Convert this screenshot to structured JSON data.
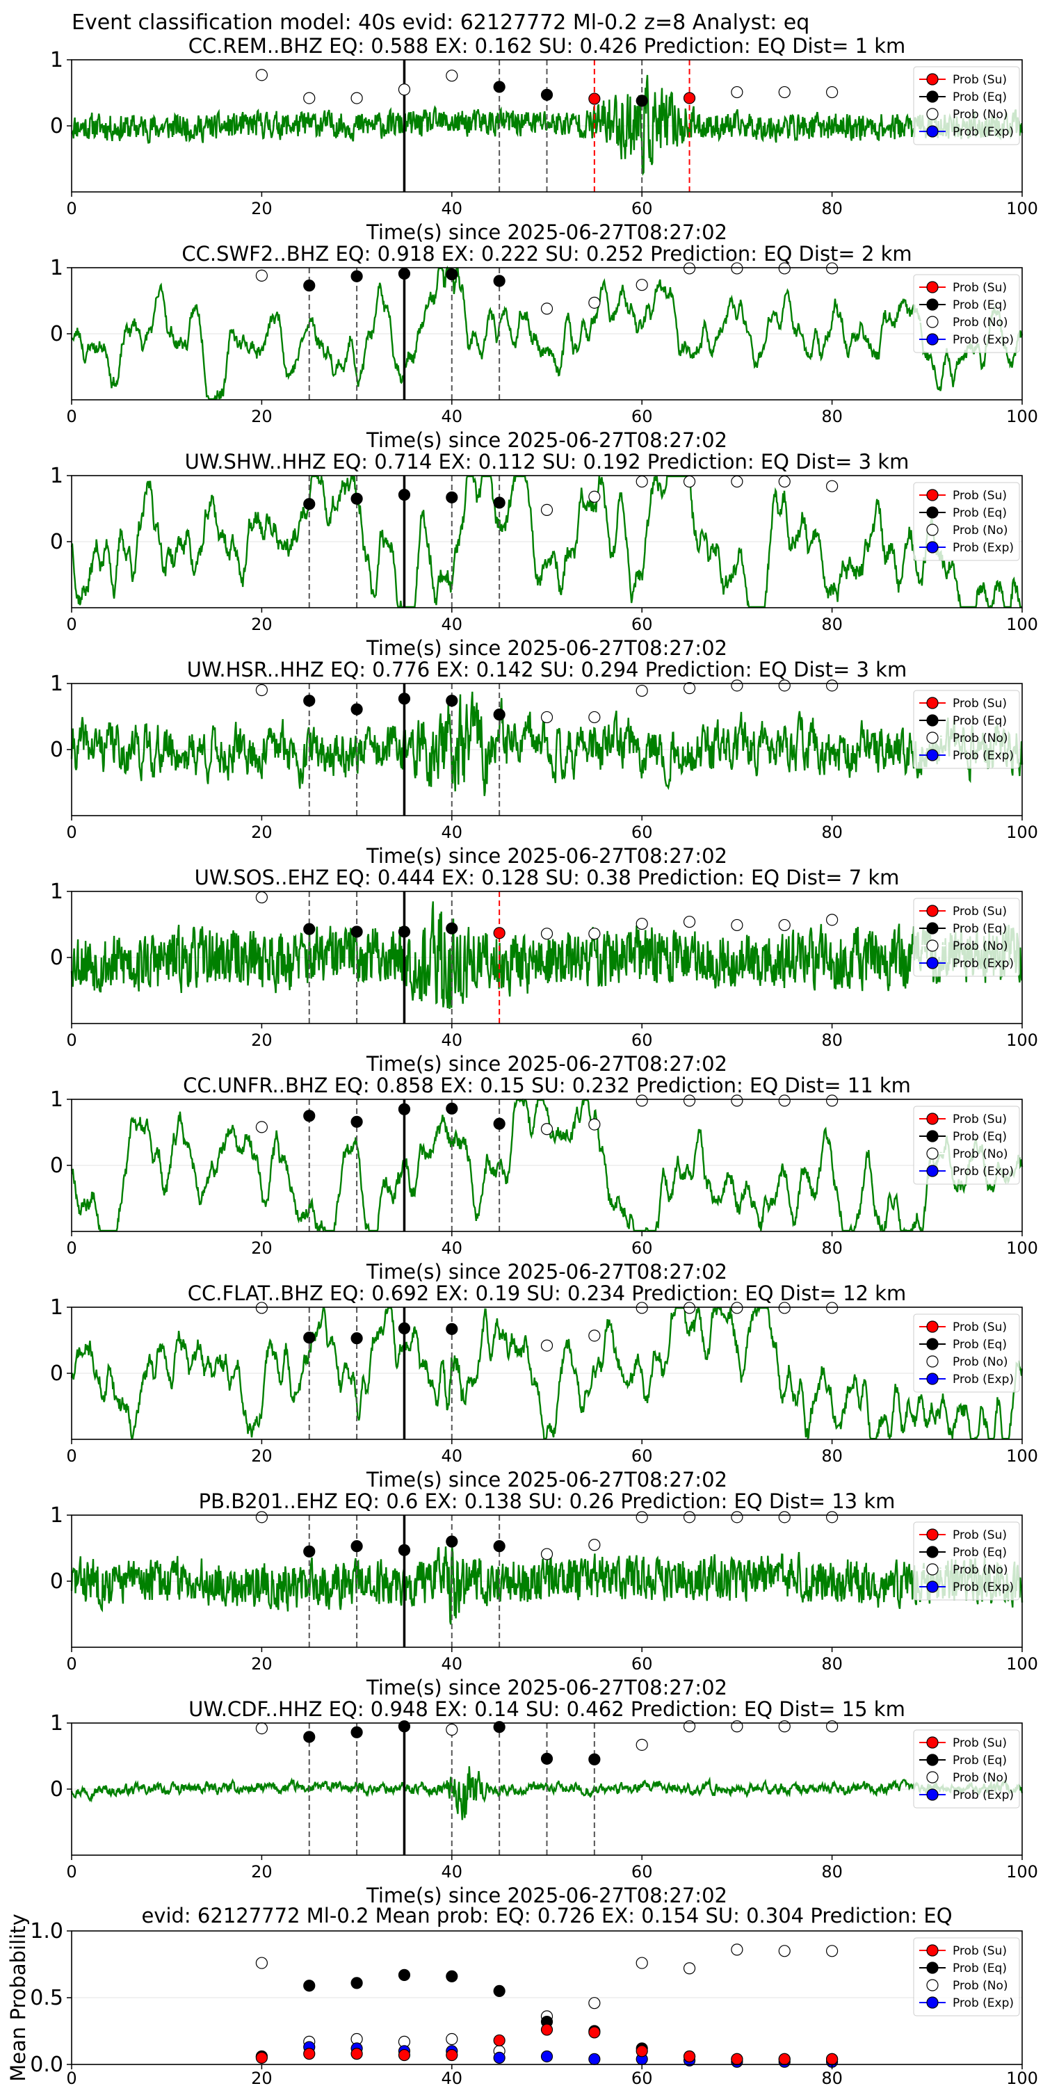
{
  "suptitle": "Event classification model: 40s evid: 62127772 Ml-0.2 z=8 Analyst: eq",
  "colors": {
    "waveform": "#008000",
    "su": "#ff0000",
    "eq": "#000000",
    "no": "#ffffff",
    "exp": "#0000ff",
    "vline_eq": "#555555",
    "vline_su": "#ff0000"
  },
  "legend": [
    "Prob (Su)",
    "Prob (Eq)",
    "Prob (No)",
    "Prob (Exp)"
  ],
  "chart_data": [
    {
      "type": "line",
      "station": "CC.REM..BHZ",
      "title": "CC.REM..BHZ   EQ: 0.588  EX: 0.162  SU: 0.426   Prediction: EQ    Dist= 1 km",
      "xlabel": "Time(s) since 2025-06-27T08:27:02",
      "xlim": [
        0,
        100
      ],
      "ylim": [
        -1,
        1
      ],
      "xticks": [
        "0",
        "20",
        "40",
        "60",
        "80",
        "100"
      ],
      "yticks": [
        "1",
        "0"
      ],
      "amp": 0.18,
      "burst": [
        54,
        66,
        3.5
      ],
      "style": "hf",
      "seed": 11,
      "pick_line": 35,
      "eq_lines": [
        45,
        50,
        60
      ],
      "su_lines": [
        55,
        65
      ],
      "no_points": [
        [
          20,
          0.77
        ],
        [
          25,
          0.42
        ],
        [
          30,
          0.42
        ],
        [
          35,
          0.55
        ],
        [
          40,
          0.76
        ],
        [
          70,
          0.51
        ],
        [
          75,
          0.51
        ],
        [
          80,
          0.51
        ]
      ],
      "eq_points": [
        [
          45,
          0.59
        ],
        [
          50,
          0.47
        ],
        [
          60,
          0.38
        ]
      ],
      "su_points": [
        [
          55,
          0.41
        ],
        [
          65,
          0.42
        ]
      ],
      "exp_points": []
    },
    {
      "type": "line",
      "station": "CC.SWF2..BHZ",
      "title": "CC.SWF2..BHZ   EQ: 0.918  EX: 0.222  SU: 0.252   Prediction: EQ    Dist= 2 km",
      "xlabel": "Time(s) since 2025-06-27T08:27:02",
      "xlim": [
        0,
        100
      ],
      "ylim": [
        -1,
        1
      ],
      "xticks": [
        "0",
        "20",
        "40",
        "60",
        "80",
        "100"
      ],
      "yticks": [
        "1",
        "0"
      ],
      "amp": 0.35,
      "burst": [
        37,
        42,
        2.5
      ],
      "style": "lf",
      "seed": 23,
      "pick_line": 35,
      "eq_lines": [
        25,
        30,
        40,
        45
      ],
      "su_lines": [],
      "no_points": [
        [
          20,
          0.88
        ],
        [
          50,
          0.38
        ],
        [
          55,
          0.47
        ],
        [
          60,
          0.74
        ],
        [
          65,
          0.99
        ],
        [
          70,
          0.99
        ],
        [
          75,
          0.99
        ],
        [
          80,
          0.99
        ]
      ],
      "eq_points": [
        [
          25,
          0.73
        ],
        [
          30,
          0.87
        ],
        [
          35,
          0.91
        ],
        [
          40,
          0.9
        ],
        [
          45,
          0.8
        ]
      ],
      "su_points": [],
      "exp_points": []
    },
    {
      "type": "line",
      "station": "UW.SHW..HHZ",
      "title": "UW.SHW..HHZ   EQ: 0.714  EX: 0.112  SU: 0.192   Prediction: EQ    Dist= 3 km",
      "xlabel": "Time(s) since 2025-06-27T08:27:02",
      "xlim": [
        0,
        100
      ],
      "ylim": [
        -1,
        1
      ],
      "xticks": [
        "0",
        "20",
        "40",
        "60",
        "80",
        "100"
      ],
      "yticks": [
        "1",
        "0"
      ],
      "amp": 0.5,
      "burst": [
        0,
        0,
        1
      ],
      "style": "lf",
      "seed": 37,
      "pick_line": 35,
      "eq_lines": [
        25,
        30,
        40,
        45
      ],
      "su_lines": [],
      "no_points": [
        [
          50,
          0.48
        ],
        [
          55,
          0.68
        ],
        [
          60,
          0.91
        ],
        [
          65,
          0.91
        ],
        [
          70,
          0.91
        ],
        [
          75,
          0.91
        ],
        [
          80,
          0.84
        ]
      ],
      "eq_points": [
        [
          25,
          0.57
        ],
        [
          30,
          0.65
        ],
        [
          35,
          0.71
        ],
        [
          40,
          0.67
        ],
        [
          45,
          0.59
        ]
      ],
      "su_points": [],
      "exp_points": []
    },
    {
      "type": "line",
      "station": "UW.HSR..HHZ",
      "title": "UW.HSR..HHZ   EQ: 0.776  EX: 0.142  SU: 0.294   Prediction: EQ    Dist= 3 km",
      "xlabel": "Time(s) since 2025-06-27T08:27:02",
      "xlim": [
        0,
        100
      ],
      "ylim": [
        -1,
        1
      ],
      "xticks": [
        "0",
        "20",
        "40",
        "60",
        "80",
        "100"
      ],
      "yticks": [
        "1",
        "0"
      ],
      "amp": 0.35,
      "burst": [
        35,
        47,
        2
      ],
      "style": "mf",
      "seed": 41,
      "pick_line": 35,
      "eq_lines": [
        25,
        30,
        40,
        45
      ],
      "su_lines": [],
      "no_points": [
        [
          20,
          0.9
        ],
        [
          50,
          0.49
        ],
        [
          55,
          0.49
        ],
        [
          60,
          0.89
        ],
        [
          65,
          0.93
        ],
        [
          70,
          0.97
        ],
        [
          75,
          0.97
        ],
        [
          80,
          0.97
        ]
      ],
      "eq_points": [
        [
          25,
          0.74
        ],
        [
          30,
          0.61
        ],
        [
          35,
          0.77
        ],
        [
          40,
          0.74
        ],
        [
          45,
          0.53
        ]
      ],
      "su_points": [],
      "exp_points": []
    },
    {
      "type": "line",
      "station": "UW.SOS..EHZ",
      "title": "UW.SOS..EHZ   EQ: 0.444  EX: 0.128  SU: 0.38   Prediction: EQ    Dist= 7 km",
      "xlabel": "Time(s) since 2025-06-27T08:27:02",
      "xlim": [
        0,
        100
      ],
      "ylim": [
        -1,
        1
      ],
      "xticks": [
        "0",
        "20",
        "40",
        "60",
        "80",
        "100"
      ],
      "yticks": [
        "1",
        "0"
      ],
      "amp": 0.4,
      "burst": [
        35,
        43,
        2
      ],
      "style": "hf",
      "seed": 53,
      "pick_line": 35,
      "eq_lines": [
        25,
        30,
        40
      ],
      "su_lines": [
        45
      ],
      "no_points": [
        [
          20,
          0.91
        ],
        [
          50,
          0.36
        ],
        [
          55,
          0.36
        ],
        [
          60,
          0.51
        ],
        [
          65,
          0.54
        ],
        [
          70,
          0.49
        ],
        [
          75,
          0.49
        ],
        [
          80,
          0.57
        ]
      ],
      "eq_points": [
        [
          25,
          0.43
        ],
        [
          30,
          0.39
        ],
        [
          35,
          0.39
        ],
        [
          40,
          0.44
        ]
      ],
      "su_points": [
        [
          45,
          0.37
        ]
      ],
      "exp_points": []
    },
    {
      "type": "line",
      "station": "CC.UNFR..BHZ",
      "title": "CC.UNFR..BHZ   EQ: 0.858  EX: 0.15  SU: 0.232   Prediction: EQ    Dist= 11 km",
      "xlabel": "Time(s) since 2025-06-27T08:27:02",
      "xlim": [
        0,
        100
      ],
      "ylim": [
        -1,
        1
      ],
      "xticks": [
        "0",
        "20",
        "40",
        "60",
        "80",
        "100"
      ],
      "yticks": [
        "1",
        "0"
      ],
      "amp": 0.4,
      "burst": [
        0,
        0,
        1
      ],
      "style": "lf",
      "seed": 67,
      "pick_line": 35,
      "eq_lines": [
        25,
        30,
        40,
        45
      ],
      "su_lines": [],
      "no_points": [
        [
          20,
          0.58
        ],
        [
          50,
          0.55
        ],
        [
          55,
          0.62
        ],
        [
          60,
          0.98
        ],
        [
          65,
          0.98
        ],
        [
          70,
          0.98
        ],
        [
          75,
          0.98
        ],
        [
          80,
          0.98
        ]
      ],
      "eq_points": [
        [
          25,
          0.75
        ],
        [
          30,
          0.66
        ],
        [
          35,
          0.85
        ],
        [
          40,
          0.86
        ],
        [
          45,
          0.63
        ]
      ],
      "su_points": [],
      "exp_points": []
    },
    {
      "type": "line",
      "station": "CC.FLAT..BHZ",
      "title": "CC.FLAT..BHZ   EQ: 0.692  EX: 0.19  SU: 0.234   Prediction: EQ    Dist= 12 km",
      "xlabel": "Time(s) since 2025-06-27T08:27:02",
      "xlim": [
        0,
        100
      ],
      "ylim": [
        -1,
        1
      ],
      "xticks": [
        "0",
        "20",
        "40",
        "60",
        "80",
        "100"
      ],
      "yticks": [
        "1",
        "0"
      ],
      "amp": 0.45,
      "burst": [
        38,
        42,
        1.8
      ],
      "style": "lf",
      "seed": 71,
      "pick_line": 35,
      "eq_lines": [
        25,
        30,
        40
      ],
      "su_lines": [],
      "no_points": [
        [
          20,
          0.99
        ],
        [
          50,
          0.42
        ],
        [
          55,
          0.57
        ],
        [
          60,
          0.99
        ],
        [
          65,
          0.99
        ],
        [
          70,
          0.99
        ],
        [
          75,
          0.99
        ],
        [
          80,
          0.99
        ]
      ],
      "eq_points": [
        [
          25,
          0.54
        ],
        [
          30,
          0.53
        ],
        [
          35,
          0.68
        ],
        [
          40,
          0.67
        ]
      ],
      "su_points": [],
      "exp_points": []
    },
    {
      "type": "line",
      "station": "PB.B201..EHZ",
      "title": "PB.B201..EHZ   EQ: 0.6  EX: 0.138  SU: 0.26   Prediction: EQ    Dist= 13 km",
      "xlabel": "Time(s) since 2025-06-27T08:27:02",
      "xlim": [
        0,
        100
      ],
      "ylim": [
        -1,
        1
      ],
      "xticks": [
        "0",
        "20",
        "40",
        "60",
        "80",
        "100"
      ],
      "yticks": [
        "1",
        "0"
      ],
      "amp": 0.3,
      "burst": [
        38,
        42,
        2
      ],
      "style": "hf",
      "seed": 83,
      "pick_line": 35,
      "eq_lines": [
        25,
        30,
        40,
        45
      ],
      "su_lines": [],
      "no_points": [
        [
          20,
          0.97
        ],
        [
          50,
          0.41
        ],
        [
          55,
          0.55
        ],
        [
          60,
          0.97
        ],
        [
          65,
          0.97
        ],
        [
          70,
          0.97
        ],
        [
          75,
          0.97
        ],
        [
          80,
          0.97
        ]
      ],
      "eq_points": [
        [
          25,
          0.45
        ],
        [
          30,
          0.53
        ],
        [
          35,
          0.47
        ],
        [
          40,
          0.6
        ],
        [
          45,
          0.53
        ]
      ],
      "su_points": [],
      "exp_points": []
    },
    {
      "type": "line",
      "station": "UW.CDF..HHZ",
      "title": "UW.CDF..HHZ   EQ: 0.948  EX: 0.14  SU: 0.462   Prediction: EQ    Dist= 15 km",
      "xlabel": "Time(s) since 2025-06-27T08:27:02",
      "xlim": [
        0,
        100
      ],
      "ylim": [
        -1,
        1
      ],
      "xticks": [
        "0",
        "20",
        "40",
        "60",
        "80",
        "100"
      ],
      "yticks": [
        "1",
        "0"
      ],
      "amp": 0.08,
      "burst": [
        39,
        44,
        6
      ],
      "style": "mf",
      "seed": 97,
      "pick_line": 35,
      "eq_lines": [
        25,
        30,
        40,
        45,
        50,
        55
      ],
      "su_lines": [],
      "no_points": [
        [
          20,
          0.92
        ],
        [
          40,
          0.9
        ],
        [
          60,
          0.67
        ],
        [
          65,
          0.95
        ],
        [
          70,
          0.95
        ],
        [
          75,
          0.95
        ],
        [
          80,
          0.95
        ]
      ],
      "eq_points": [
        [
          25,
          0.79
        ],
        [
          30,
          0.86
        ],
        [
          35,
          0.95
        ],
        [
          45,
          0.94
        ],
        [
          50,
          0.46
        ],
        [
          55,
          0.45
        ]
      ],
      "su_points": [],
      "exp_points": []
    },
    {
      "type": "scatter",
      "title": "evid: 62127772  Ml-0.2   Mean prob:    EQ: 0.726  EX: 0.154  SU: 0.304   Prediction: EQ",
      "ylabel": "Mean Probability",
      "xlim": [
        0,
        100
      ],
      "ylim": [
        0,
        1
      ],
      "xticks": [
        "0",
        "20",
        "40",
        "60",
        "80",
        "100"
      ],
      "yticks": [
        "0.0",
        "0.5",
        "1.0"
      ],
      "x": [
        20,
        25,
        30,
        35,
        40,
        45,
        50,
        55,
        60,
        65,
        70,
        75,
        80
      ],
      "series": [
        {
          "name": "Prob (Su)",
          "color": "#ff0000",
          "values": [
            0.05,
            0.08,
            0.08,
            0.07,
            0.07,
            0.18,
            0.26,
            0.24,
            0.1,
            0.06,
            0.04,
            0.04,
            0.04
          ]
        },
        {
          "name": "Prob (Eq)",
          "color": "#000000",
          "values": [
            0.06,
            0.59,
            0.61,
            0.67,
            0.66,
            0.55,
            0.32,
            0.25,
            0.12,
            0.06,
            0.04,
            0.04,
            0.04
          ]
        },
        {
          "name": "Prob (No)",
          "color": "#ffffff",
          "values": [
            0.76,
            0.17,
            0.19,
            0.17,
            0.19,
            0.1,
            0.36,
            0.46,
            0.76,
            0.72,
            0.86,
            0.85,
            0.85
          ]
        },
        {
          "name": "Prob (Exp)",
          "color": "#0000ff",
          "values": [
            0.06,
            0.13,
            0.12,
            0.1,
            0.1,
            0.05,
            0.06,
            0.04,
            0.04,
            0.03,
            0.02,
            0.02,
            0.02
          ]
        }
      ]
    }
  ]
}
